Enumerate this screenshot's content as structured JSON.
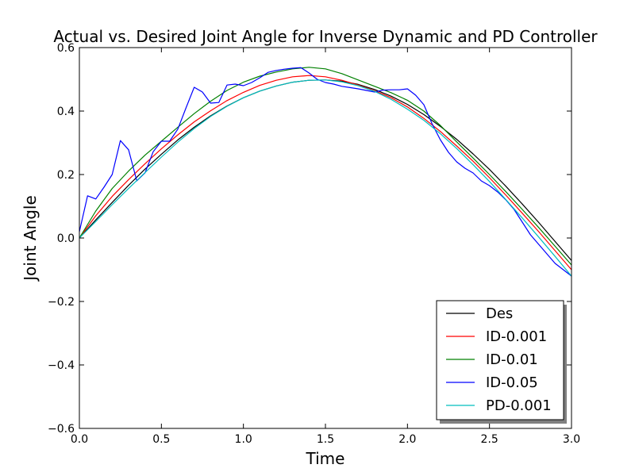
{
  "chart_data": {
    "type": "line",
    "title": "Actual vs. Desired Joint Angle for Inverse Dynamic and PD Controller",
    "xlabel": "Time",
    "ylabel": "Joint Angle",
    "xlim": [
      0.0,
      3.0
    ],
    "ylim": [
      -0.6,
      0.6
    ],
    "x_ticks": [
      "0.0",
      "0.5",
      "1.0",
      "1.5",
      "2.0",
      "2.5",
      "3.0"
    ],
    "y_ticks": [
      "−0.6",
      "−0.4",
      "−0.2",
      "0.0",
      "0.2",
      "0.4",
      "0.6"
    ],
    "grid": false,
    "legend_position": "lower right",
    "series": [
      {
        "name": "Des",
        "color": "#000000",
        "x": [
          0.0,
          0.1,
          0.2,
          0.3,
          0.4,
          0.5,
          0.6,
          0.7,
          0.8,
          0.9,
          1.0,
          1.1,
          1.2,
          1.3,
          1.4,
          1.5,
          1.6,
          1.7,
          1.8,
          1.9,
          2.0,
          2.1,
          2.2,
          2.3,
          2.4,
          2.5,
          2.6,
          2.7,
          2.8,
          2.9,
          3.0
        ],
        "y": [
          0.0,
          0.057,
          0.112,
          0.166,
          0.217,
          0.264,
          0.309,
          0.349,
          0.385,
          0.416,
          0.442,
          0.463,
          0.479,
          0.491,
          0.497,
          0.498,
          0.494,
          0.484,
          0.468,
          0.447,
          0.421,
          0.389,
          0.352,
          0.311,
          0.265,
          0.216,
          0.163,
          0.107,
          0.049,
          -0.011,
          -0.071
        ]
      },
      {
        "name": "ID-0.001",
        "color": "#ff0000",
        "x": [
          0.0,
          0.1,
          0.2,
          0.3,
          0.4,
          0.5,
          0.6,
          0.7,
          0.8,
          0.9,
          1.0,
          1.1,
          1.2,
          1.3,
          1.4,
          1.5,
          1.6,
          1.7,
          1.8,
          1.9,
          2.0,
          2.1,
          2.2,
          2.3,
          2.4,
          2.5,
          2.6,
          2.7,
          2.8,
          2.9,
          3.0
        ],
        "y": [
          0.0,
          0.07,
          0.131,
          0.184,
          0.234,
          0.281,
          0.325,
          0.366,
          0.401,
          0.433,
          0.459,
          0.481,
          0.497,
          0.508,
          0.512,
          0.508,
          0.497,
          0.482,
          0.464,
          0.442,
          0.413,
          0.377,
          0.336,
          0.29,
          0.242,
          0.19,
          0.135,
          0.078,
          0.02,
          -0.04,
          -0.1
        ]
      },
      {
        "name": "ID-0.01",
        "color": "#008000",
        "x": [
          0.0,
          0.1,
          0.2,
          0.3,
          0.4,
          0.5,
          0.6,
          0.7,
          0.8,
          0.9,
          1.0,
          1.1,
          1.2,
          1.3,
          1.4,
          1.5,
          1.6,
          1.7,
          1.8,
          1.9,
          2.0,
          2.1,
          2.2,
          2.3,
          2.4,
          2.5,
          2.6,
          2.7,
          2.8,
          2.9,
          3.0
        ],
        "y": [
          0.0,
          0.085,
          0.156,
          0.211,
          0.261,
          0.305,
          0.349,
          0.392,
          0.431,
          0.465,
          0.491,
          0.51,
          0.523,
          0.533,
          0.538,
          0.533,
          0.518,
          0.498,
          0.478,
          0.458,
          0.434,
          0.4,
          0.355,
          0.303,
          0.252,
          0.2,
          0.146,
          0.09,
          0.033,
          -0.026,
          -0.085
        ]
      },
      {
        "name": "ID-0.05",
        "color": "#0000ff",
        "x": [
          0.0,
          0.05,
          0.1,
          0.15,
          0.2,
          0.25,
          0.3,
          0.35,
          0.4,
          0.45,
          0.5,
          0.55,
          0.6,
          0.65,
          0.7,
          0.75,
          0.8,
          0.85,
          0.9,
          0.95,
          1.0,
          1.05,
          1.1,
          1.15,
          1.2,
          1.25,
          1.3,
          1.35,
          1.4,
          1.45,
          1.5,
          1.55,
          1.6,
          1.65,
          1.7,
          1.75,
          1.8,
          1.85,
          1.9,
          1.95,
          2.0,
          2.05,
          2.1,
          2.15,
          2.2,
          2.25,
          2.3,
          2.35,
          2.4,
          2.45,
          2.5,
          2.55,
          2.6,
          2.65,
          2.7,
          2.75,
          2.8,
          2.85,
          2.9,
          2.95,
          3.0
        ],
        "y": [
          0.02,
          0.133,
          0.123,
          0.16,
          0.2,
          0.307,
          0.278,
          0.18,
          0.205,
          0.272,
          0.305,
          0.305,
          0.343,
          0.41,
          0.475,
          0.46,
          0.425,
          0.427,
          0.482,
          0.485,
          0.48,
          0.49,
          0.505,
          0.522,
          0.528,
          0.532,
          0.535,
          0.537,
          0.52,
          0.5,
          0.49,
          0.485,
          0.478,
          0.474,
          0.47,
          0.465,
          0.46,
          0.466,
          0.467,
          0.467,
          0.47,
          0.45,
          0.42,
          0.36,
          0.31,
          0.27,
          0.24,
          0.22,
          0.205,
          0.18,
          0.165,
          0.145,
          0.12,
          0.09,
          0.05,
          0.01,
          -0.02,
          -0.05,
          -0.08,
          -0.1,
          -0.12
        ]
      },
      {
        "name": "PD-0.001",
        "color": "#00bfbf",
        "x": [
          0.0,
          0.1,
          0.2,
          0.3,
          0.4,
          0.5,
          0.6,
          0.7,
          0.8,
          0.9,
          1.0,
          1.1,
          1.2,
          1.3,
          1.4,
          1.5,
          1.6,
          1.7,
          1.8,
          1.9,
          2.0,
          2.1,
          2.2,
          2.3,
          2.4,
          2.5,
          2.6,
          2.7,
          2.8,
          2.9,
          3.0
        ],
        "y": [
          0.0,
          0.052,
          0.105,
          0.156,
          0.206,
          0.255,
          0.302,
          0.345,
          0.383,
          0.415,
          0.442,
          0.463,
          0.479,
          0.491,
          0.497,
          0.498,
          0.492,
          0.48,
          0.462,
          0.437,
          0.406,
          0.371,
          0.329,
          0.282,
          0.231,
          0.178,
          0.121,
          0.063,
          0.003,
          -0.058,
          -0.12
        ]
      }
    ]
  }
}
